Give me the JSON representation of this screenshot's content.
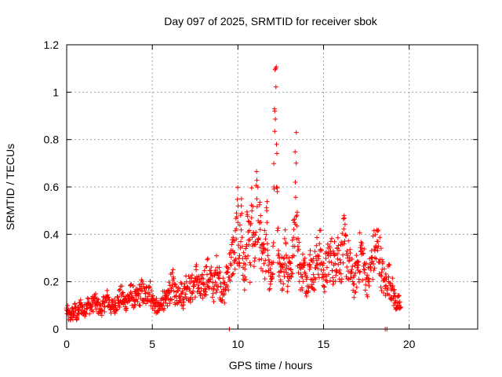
{
  "chart_data": {
    "type": "scatter",
    "title": "Day 097 of 2025, SRMTID for receiver sbok",
    "xlabel": "GPS time / hours",
    "ylabel": "SRMTID / TECUs",
    "xlim": [
      0,
      24
    ],
    "ylim": [
      0,
      1.2
    ],
    "xticks": [
      0,
      5,
      10,
      15,
      20
    ],
    "yticks": [
      0,
      0.2,
      0.4,
      0.6,
      0.8,
      1,
      1.2
    ],
    "ytick_labels": [
      "0",
      "0.2",
      "0.4",
      "0.6",
      "0.8",
      "1",
      "1.2"
    ],
    "grid": true,
    "marker": "+",
    "color": "#ff0000",
    "series": [
      {
        "name": "SRMTID",
        "x": [
          0.0,
          0.1,
          0.2,
          0.3,
          0.4,
          0.5,
          0.6,
          0.7,
          0.8,
          0.9,
          1.0,
          1.2,
          1.4,
          1.6,
          1.8,
          2.0,
          2.2,
          2.4,
          2.6,
          2.8,
          3.0,
          3.2,
          3.4,
          3.6,
          3.8,
          4.0,
          4.2,
          4.4,
          4.6,
          4.8,
          5.0,
          5.2,
          5.4,
          5.6,
          5.8,
          6.0,
          6.2,
          6.4,
          6.6,
          6.8,
          7.0,
          7.2,
          7.4,
          7.6,
          7.8,
          8.0,
          8.2,
          8.4,
          8.6,
          8.8,
          9.0,
          9.2,
          9.4,
          9.6,
          9.7,
          9.8,
          9.9,
          10.0,
          10.1,
          10.2,
          10.3,
          10.4,
          10.5,
          10.6,
          10.7,
          10.8,
          10.9,
          11.0,
          11.1,
          11.2,
          11.3,
          11.4,
          11.5,
          11.6,
          11.7,
          11.8,
          11.9,
          12.0,
          12.05,
          12.1,
          12.15,
          12.2,
          12.25,
          12.3,
          12.35,
          12.4,
          12.5,
          12.6,
          12.7,
          12.8,
          12.9,
          13.0,
          13.1,
          13.2,
          13.3,
          13.35,
          13.4,
          13.45,
          13.5,
          13.6,
          13.7,
          13.8,
          13.9,
          14.0,
          14.2,
          14.4,
          14.6,
          14.8,
          15.0,
          15.2,
          15.4,
          15.6,
          15.8,
          16.0,
          16.2,
          16.4,
          16.6,
          16.8,
          17.0,
          17.2,
          17.4,
          17.6,
          17.8,
          18.0,
          18.2,
          18.4,
          18.6,
          18.8,
          19.0,
          19.1,
          19.2,
          19.3,
          19.4,
          19.5
        ],
        "y": [
          0.08,
          0.06,
          0.05,
          0.07,
          0.06,
          0.09,
          0.05,
          0.08,
          0.1,
          0.09,
          0.07,
          0.11,
          0.09,
          0.12,
          0.1,
          0.08,
          0.11,
          0.13,
          0.09,
          0.1,
          0.12,
          0.14,
          0.11,
          0.13,
          0.15,
          0.12,
          0.14,
          0.16,
          0.13,
          0.18,
          0.12,
          0.1,
          0.08,
          0.13,
          0.11,
          0.16,
          0.19,
          0.14,
          0.17,
          0.13,
          0.2,
          0.16,
          0.18,
          0.22,
          0.15,
          0.19,
          0.23,
          0.21,
          0.17,
          0.26,
          0.18,
          0.15,
          0.24,
          0.27,
          0.33,
          0.29,
          0.38,
          0.45,
          0.31,
          0.52,
          0.26,
          0.22,
          0.35,
          0.41,
          0.28,
          0.47,
          0.36,
          0.3,
          0.55,
          0.38,
          0.42,
          0.33,
          0.36,
          0.29,
          0.45,
          0.24,
          0.19,
          0.22,
          0.35,
          0.6,
          0.92,
          1.1,
          0.78,
          0.58,
          0.31,
          0.24,
          0.2,
          0.26,
          0.3,
          0.36,
          0.22,
          0.28,
          0.25,
          0.31,
          0.45,
          0.62,
          0.7,
          0.48,
          0.33,
          0.27,
          0.22,
          0.26,
          0.24,
          0.21,
          0.27,
          0.23,
          0.29,
          0.33,
          0.22,
          0.26,
          0.31,
          0.27,
          0.34,
          0.28,
          0.36,
          0.3,
          0.24,
          0.19,
          0.27,
          0.33,
          0.25,
          0.2,
          0.28,
          0.33,
          0.35,
          0.24,
          0.18,
          0.22,
          0.17,
          0.14,
          0.12,
          0.1,
          0.11,
          0.09
        ]
      }
    ],
    "outliers_at_zero_x": [
      9.5,
      18.6,
      18.7
    ]
  }
}
